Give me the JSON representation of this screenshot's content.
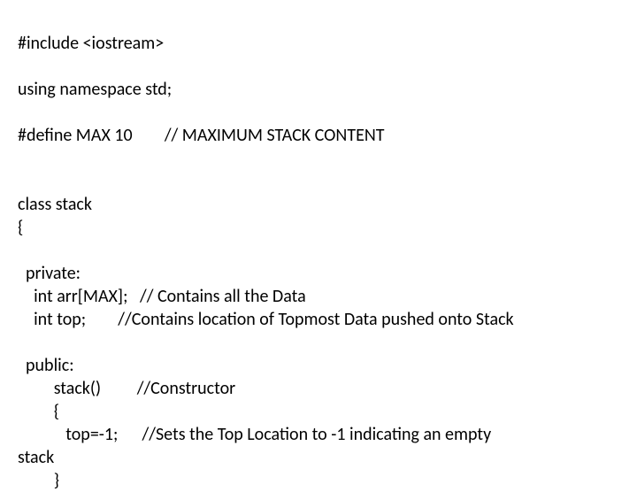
{
  "code": {
    "lines": [
      "#include <iostream>",
      "",
      "using namespace std;",
      "",
      "#define MAX 10        // MAXIMUM STACK CONTENT",
      "",
      "",
      "class stack",
      "{",
      "",
      "  private:",
      "    int arr[MAX];   // Contains all the Data",
      "    int top;        //Contains location of Topmost Data pushed onto Stack",
      "",
      "  public:",
      "         stack()         //Constructor",
      "         {",
      "            top=-1;      //Sets the Top Location to -1 indicating an empty",
      "stack",
      "         }"
    ],
    "font_family": "Calibri, Arial, sans-serif",
    "font_size": 20,
    "text_color": "#000000",
    "background_color": "#ffffff"
  }
}
